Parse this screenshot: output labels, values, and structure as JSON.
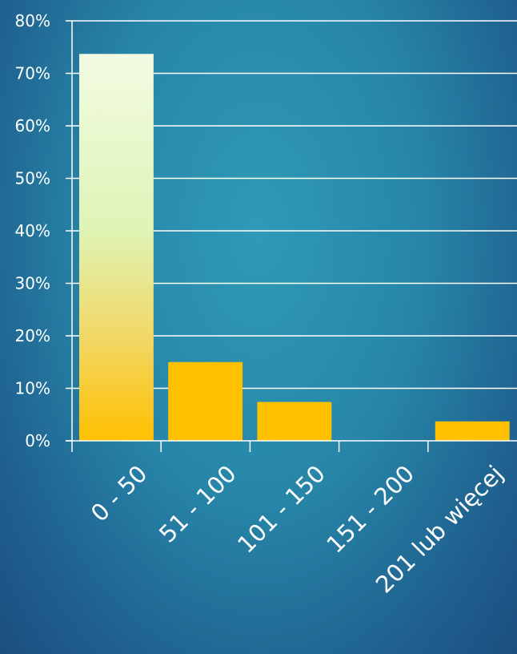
{
  "chart_data": {
    "type": "bar",
    "title": "",
    "xlabel": "",
    "ylabel": "",
    "categories": [
      "0 - 50",
      "51 - 100",
      "101 - 150",
      "151 - 200",
      "201 lub więcej"
    ],
    "values": [
      73.7,
      15.0,
      7.4,
      0,
      3.7
    ],
    "ylim": [
      0,
      80
    ],
    "yticks": [
      "0%",
      "10%",
      "20%",
      "30%",
      "40%",
      "50%",
      "60%",
      "70%",
      "80%"
    ],
    "grid": true,
    "legend": "none",
    "colors": {
      "bar": "#ffc000",
      "bar_highlight_top": "#eefad6",
      "grid": "#ffffff",
      "text": "#ffffff"
    }
  }
}
